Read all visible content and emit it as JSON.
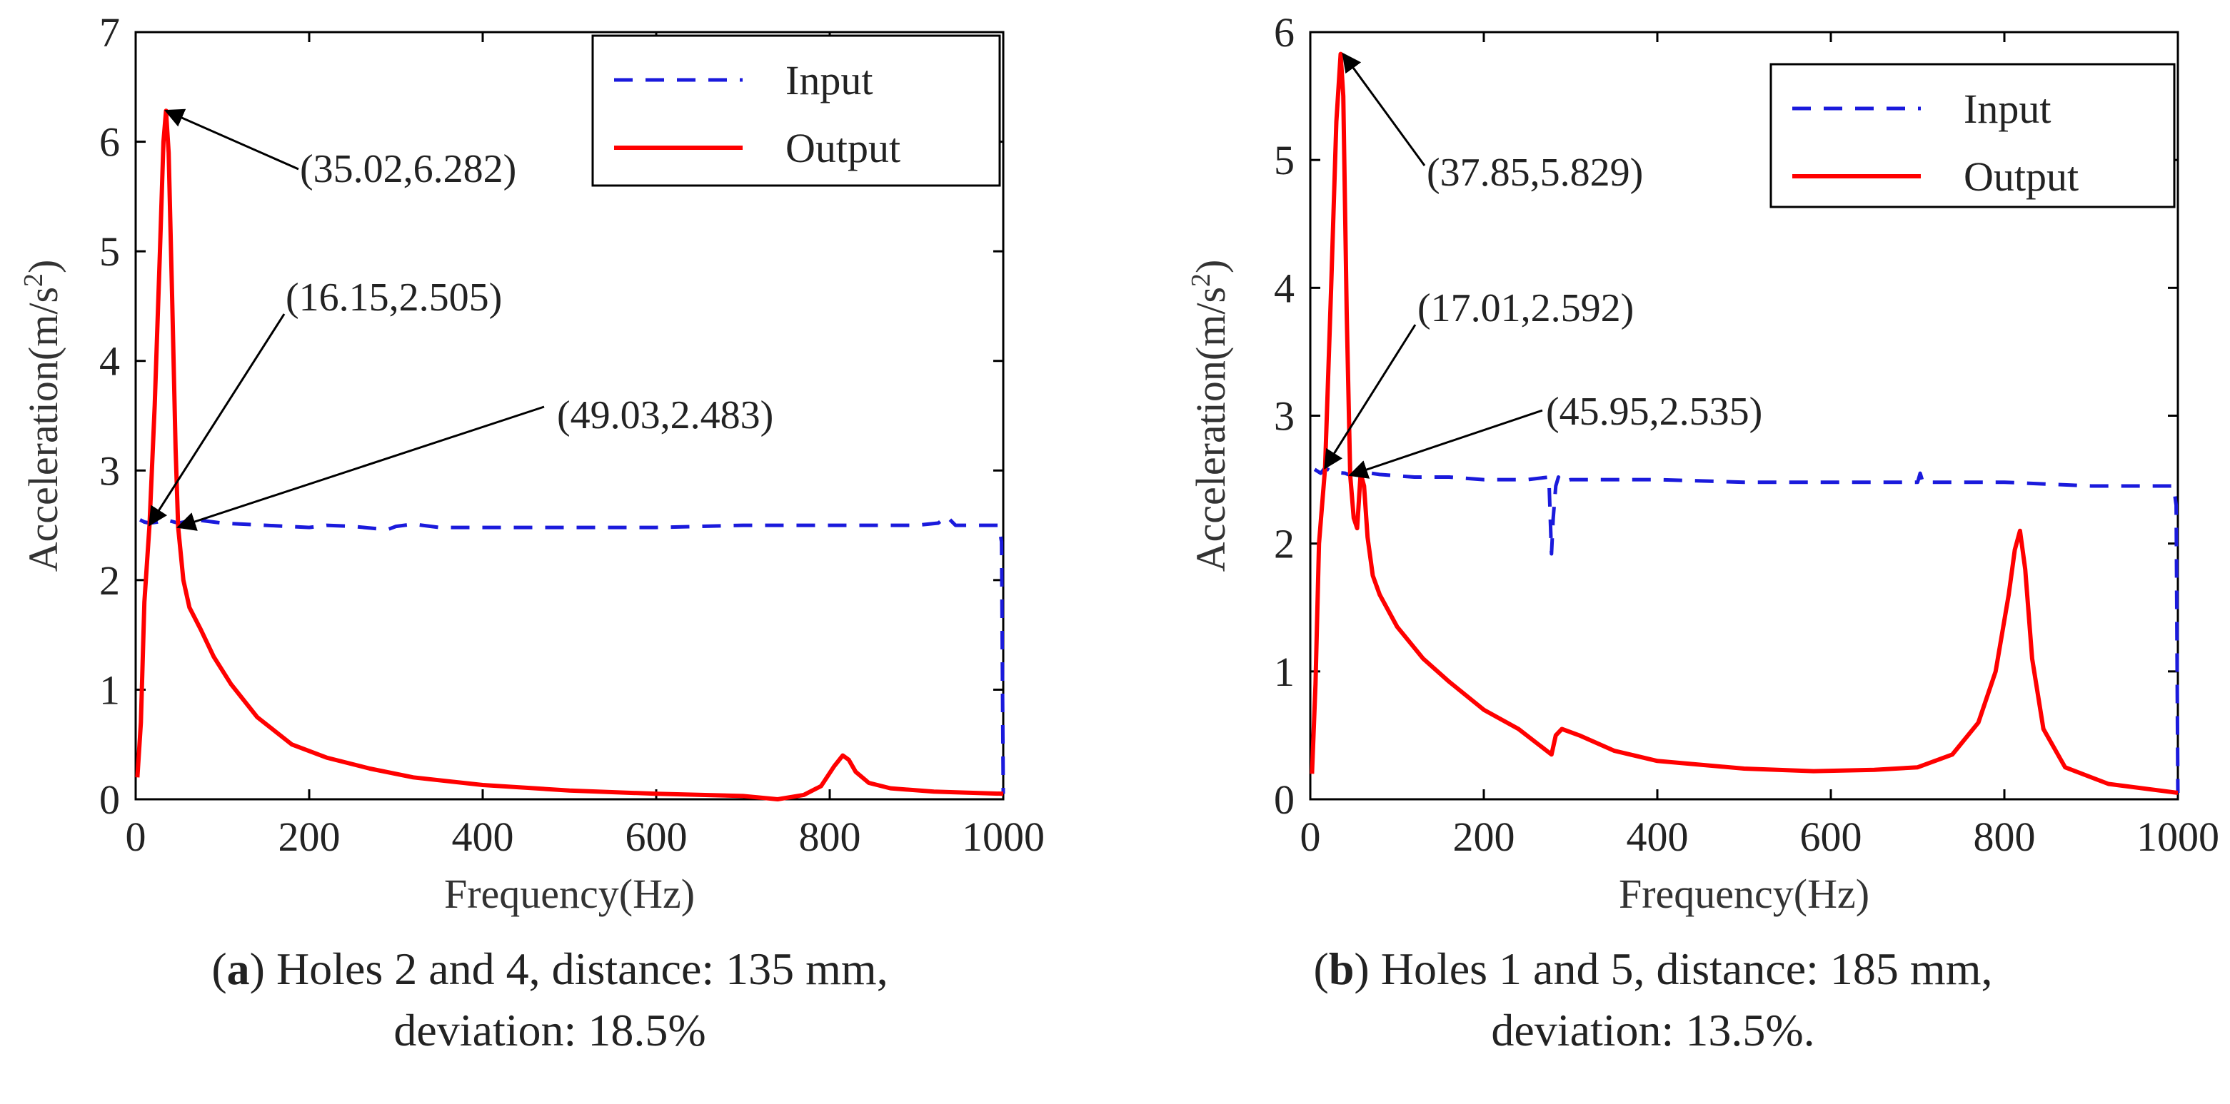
{
  "figure": {
    "captions": [
      {
        "letter": "a",
        "line1": " Holes 2 and 4, distance: 135 mm,",
        "line2": "deviation: 18.5%"
      },
      {
        "letter": "b",
        "line1": " Holes 1 and 5, distance: 185 mm,",
        "line2": "deviation: 13.5%."
      }
    ],
    "colors": {
      "input": "#1a1adc",
      "output": "#ff0000",
      "axis": "#000000",
      "annotation": "#000000"
    }
  },
  "chart_data": [
    {
      "type": "line",
      "xlabel": "Frequency(Hz)",
      "ylabel": "Acceleration(m/s",
      "ylabel_sup": "2",
      "ylabel_close": ")",
      "xlim": [
        0,
        1000
      ],
      "ylim": [
        0,
        7
      ],
      "xticks": [
        0,
        200,
        400,
        600,
        800,
        1000
      ],
      "yticks": [
        0,
        1,
        2,
        3,
        4,
        5,
        6,
        7
      ],
      "legend": {
        "placement": "top-right",
        "entries": [
          "Input",
          "Output"
        ]
      },
      "series": [
        {
          "name": "Input",
          "style": "dashed",
          "x": [
            5,
            10,
            16,
            25,
            35,
            49,
            70,
            100,
            150,
            200,
            220,
            250,
            290,
            300,
            320,
            350,
            400,
            500,
            600,
            700,
            800,
            900,
            925,
            935,
            945,
            995,
            998,
            1000
          ],
          "y": [
            2.55,
            2.53,
            2.52,
            2.53,
            2.55,
            2.52,
            2.55,
            2.52,
            2.5,
            2.48,
            2.5,
            2.49,
            2.46,
            2.49,
            2.51,
            2.48,
            2.48,
            2.48,
            2.48,
            2.5,
            2.5,
            2.5,
            2.52,
            2.58,
            2.5,
            2.5,
            2.35,
            0.05
          ]
        },
        {
          "name": "Output",
          "style": "solid",
          "x": [
            2,
            6,
            10,
            16,
            22,
            28,
            32,
            35,
            38,
            42,
            46,
            49,
            55,
            62,
            75,
            90,
            110,
            140,
            180,
            220,
            270,
            320,
            400,
            500,
            600,
            700,
            740,
            770,
            790,
            805,
            815,
            822,
            830,
            845,
            870,
            920,
            1000
          ],
          "y": [
            0.2,
            0.7,
            1.8,
            2.505,
            3.6,
            5.0,
            6.0,
            6.282,
            5.9,
            4.6,
            3.2,
            2.483,
            2.0,
            1.75,
            1.55,
            1.3,
            1.05,
            0.75,
            0.5,
            0.38,
            0.28,
            0.2,
            0.13,
            0.08,
            0.05,
            0.03,
            0.0,
            0.04,
            0.12,
            0.3,
            0.4,
            0.36,
            0.25,
            0.15,
            0.1,
            0.07,
            0.05
          ]
        }
      ],
      "annotations": [
        {
          "text": "(35.02,6.282)",
          "x": 35.02,
          "y": 6.282
        },
        {
          "text": "(16.15,2.505)",
          "x": 16.15,
          "y": 2.505
        },
        {
          "text": "(49.03,2.483)",
          "x": 49.03,
          "y": 2.483
        }
      ]
    },
    {
      "type": "line",
      "xlabel": "Frequency(Hz)",
      "ylabel": "Acceleration(m/s",
      "ylabel_sup": "2",
      "ylabel_close": ")",
      "xlim": [
        0,
        1000
      ],
      "ylim": [
        0,
        6
      ],
      "xticks": [
        0,
        200,
        400,
        600,
        800,
        1000
      ],
      "yticks": [
        0,
        1,
        2,
        3,
        4,
        5,
        6
      ],
      "legend": {
        "placement": "top-right",
        "entries": [
          "Input",
          "Output"
        ]
      },
      "series": [
        {
          "name": "Input",
          "style": "dashed",
          "x": [
            5,
            12,
            17,
            25,
            40,
            46,
            60,
            80,
            120,
            160,
            200,
            250,
            275,
            278,
            280,
            283,
            286,
            290,
            300,
            320,
            400,
            500,
            600,
            700,
            703,
            706,
            720,
            800,
            900,
            995,
            998,
            1000
          ],
          "y": [
            2.58,
            2.55,
            2.592,
            2.56,
            2.55,
            2.535,
            2.56,
            2.54,
            2.52,
            2.52,
            2.5,
            2.5,
            2.52,
            1.92,
            2.2,
            2.45,
            2.52,
            2.48,
            2.5,
            2.5,
            2.5,
            2.48,
            2.48,
            2.48,
            2.55,
            2.48,
            2.48,
            2.48,
            2.45,
            2.45,
            2.3,
            0.05
          ]
        },
        {
          "name": "Output",
          "style": "solid",
          "x": [
            2,
            6,
            10,
            17,
            24,
            30,
            35,
            38,
            42,
            46,
            50,
            54,
            58,
            62,
            66,
            72,
            80,
            100,
            130,
            160,
            200,
            240,
            278,
            283,
            290,
            310,
            350,
            400,
            500,
            580,
            650,
            700,
            740,
            770,
            790,
            805,
            812,
            818,
            824,
            832,
            845,
            870,
            920,
            1000
          ],
          "y": [
            0.2,
            0.9,
            2.0,
            2.592,
            4.0,
            5.3,
            5.829,
            5.5,
            3.8,
            2.535,
            2.2,
            2.12,
            2.55,
            2.45,
            2.05,
            1.75,
            1.6,
            1.35,
            1.1,
            0.92,
            0.7,
            0.55,
            0.35,
            0.5,
            0.55,
            0.5,
            0.38,
            0.3,
            0.24,
            0.22,
            0.23,
            0.25,
            0.35,
            0.6,
            1.0,
            1.6,
            1.95,
            2.1,
            1.8,
            1.1,
            0.55,
            0.25,
            0.12,
            0.05
          ]
        }
      ],
      "annotations": [
        {
          "text": "(37.85,5.829)",
          "x": 37.85,
          "y": 5.829
        },
        {
          "text": "(17.01,2.592)",
          "x": 17.01,
          "y": 2.592
        },
        {
          "text": "(45.95,2.535)",
          "x": 45.95,
          "y": 2.535
        }
      ]
    }
  ]
}
